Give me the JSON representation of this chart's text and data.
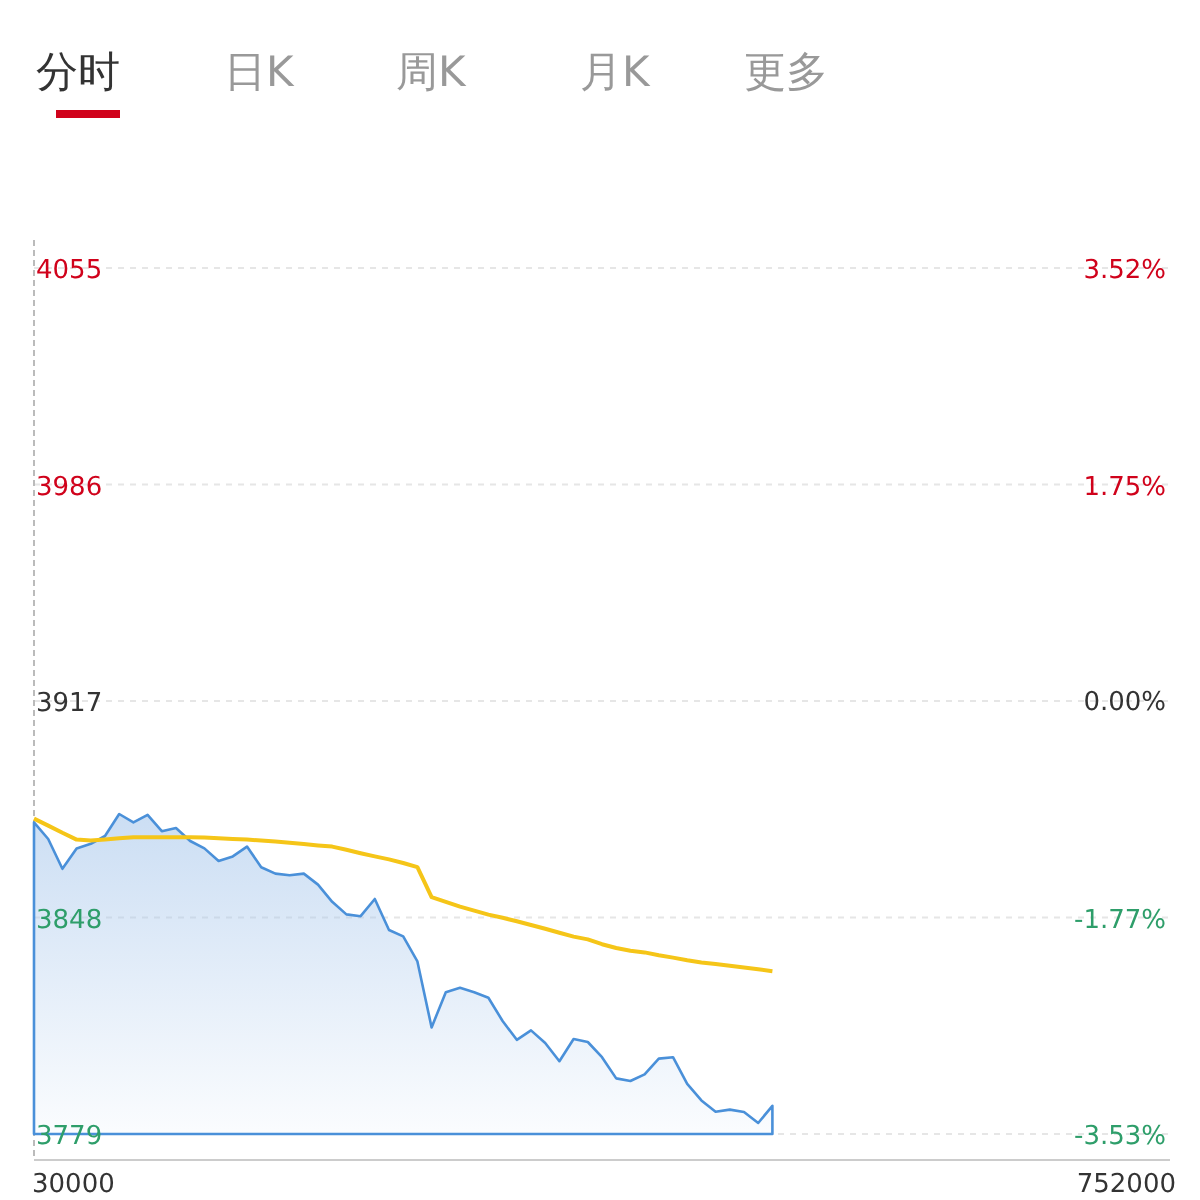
{
  "chart_data": {
    "type": "line",
    "annotations": [
      "分时",
      "日K",
      "周K",
      "月K",
      "更多",
      "30000",
      "752000"
    ],
    "categories": [
      null,
      null,
      null,
      null,
      null,
      null,
      null,
      null,
      null,
      null,
      null,
      null,
      null,
      null,
      null,
      null,
      null,
      null,
      null,
      null,
      null,
      null,
      null,
      null,
      null,
      null,
      null,
      null,
      null,
      null,
      null,
      null,
      null,
      null,
      null,
      null,
      null,
      null,
      null,
      null,
      null,
      null,
      null,
      null,
      null,
      null,
      null,
      null,
      null,
      null,
      null,
      null,
      null,
      null,
      null,
      null,
      null,
      null,
      null,
      null,
      null,
      null,
      null,
      null,
      null,
      null,
      null,
      null,
      null,
      null,
      null,
      null,
      null,
      null,
      null,
      null,
      null,
      null,
      null,
      null,
      null
    ],
    "ylim": [
      3779,
      4055
    ],
    "yticks": [
      3779,
      3848,
      3917,
      3986,
      4055
    ],
    "y2lim": [
      -3.53,
      3.52
    ],
    "y2ticks": [
      {
        "value": -3.53,
        "label": "-3.53%"
      },
      {
        "value": -1.77,
        "label": "-1.77%"
      },
      {
        "value": 0,
        "label": "0.00%"
      },
      {
        "value": 1.75,
        "label": "1.75%"
      },
      {
        "value": 3.52,
        "label": "3.52%"
      }
    ],
    "grid": "y",
    "series": [
      {
        "type": "area",
        "color": "#4a90d9",
        "values": [
          3878.3,
          3873,
          3863.5,
          3870,
          3871.5,
          3874,
          3881,
          3878.3,
          3880.7,
          3875.5,
          3876.5,
          3872.4,
          3870,
          3866,
          3867.5,
          3870.6,
          3864,
          3862,
          3861.5,
          3862,
          3858.5,
          3853,
          3849,
          3848.4,
          3853.9,
          3844,
          3842,
          3834,
          3813,
          3824.2,
          3825.6,
          3824.2,
          3822.4,
          3815,
          3809,
          3812,
          3808,
          3802.2,
          3809.3,
          3808.3,
          3803.5,
          3796.7,
          3795.9,
          3798,
          3803,
          3803.5,
          3795,
          3789.7,
          3786.1,
          3786.8,
          3786,
          3782.5,
          3788,
          null,
          null,
          null,
          null,
          null,
          null,
          null,
          null,
          null,
          null,
          null,
          null,
          null,
          null,
          null,
          null,
          null,
          null,
          null,
          null,
          null,
          null,
          null,
          null,
          null,
          null,
          null,
          null
        ]
      },
      {
        "color": "#f5c518",
        "values": [
          3879.5,
          3877.3,
          3875,
          3872.8,
          3872.6,
          3872.9,
          3873.3,
          3873.6,
          3873.6,
          3873.6,
          3873.6,
          3873.6,
          3873.5,
          3873.3,
          3873,
          3872.8,
          3872.5,
          3872.2,
          3871.8,
          3871.4,
          3871,
          3870.6,
          3869.6,
          3868.5,
          3867.5,
          3866.5,
          3865.4,
          3864,
          3854.5,
          3853,
          3851.5,
          3850.2,
          3848.9,
          3847.9,
          3846.8,
          3845.6,
          3844.4,
          3843.1,
          3841.9,
          3841,
          3839.5,
          3838.3,
          3837.4,
          3836.9,
          3836,
          3835.2,
          3834.4,
          3833.7,
          3833.2,
          3832.6,
          3832.1,
          3831.5,
          3830.9,
          null,
          null,
          null,
          null,
          null,
          null,
          null,
          null,
          null,
          null,
          null,
          null,
          null,
          null,
          null,
          null,
          null,
          null,
          null,
          null,
          null,
          null,
          null,
          null,
          null,
          null,
          null,
          null
        ]
      }
    ]
  }
}
